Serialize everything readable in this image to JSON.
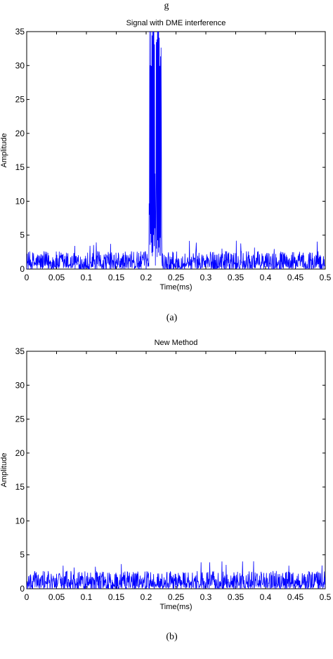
{
  "figure_top_fragment": "g",
  "chart_data": [
    {
      "type": "line",
      "title": "Signal with DME interference",
      "xlabel": "Time(ms)",
      "ylabel": "Amplitude",
      "xlim": [
        0,
        0.5
      ],
      "ylim": [
        0,
        35
      ],
      "x_ticks": [
        "0",
        "0.05",
        "0.1",
        "0.15",
        "0.2",
        "0.25",
        "0.3",
        "0.35",
        "0.4",
        "0.45",
        "0.5"
      ],
      "y_ticks": [
        "0",
        "5",
        "10",
        "15",
        "20",
        "25",
        "30",
        "35"
      ],
      "caption": "(a)",
      "color": "#0000ff",
      "sample_count": 1000,
      "noise_amplitude_range": [
        0,
        3.5
      ],
      "pulses": [
        {
          "start": 0.205,
          "end": 0.215,
          "peak": 35
        },
        {
          "start": 0.216,
          "end": 0.226,
          "peak": 35
        }
      ]
    },
    {
      "type": "line",
      "title": "New Method",
      "xlabel": "Time(ms)",
      "ylabel": "Amplitude",
      "xlim": [
        0,
        0.5
      ],
      "ylim": [
        0,
        35
      ],
      "x_ticks": [
        "0",
        "0.05",
        "0.1",
        "0.15",
        "0.2",
        "0.25",
        "0.3",
        "0.35",
        "0.4",
        "0.45",
        "0.5"
      ],
      "y_ticks": [
        "0",
        "5",
        "10",
        "15",
        "20",
        "25",
        "30",
        "35"
      ],
      "caption": "(b)",
      "color": "#0000ff",
      "sample_count": 1000,
      "noise_amplitude_range": [
        0,
        3.5
      ],
      "pulses": []
    }
  ]
}
